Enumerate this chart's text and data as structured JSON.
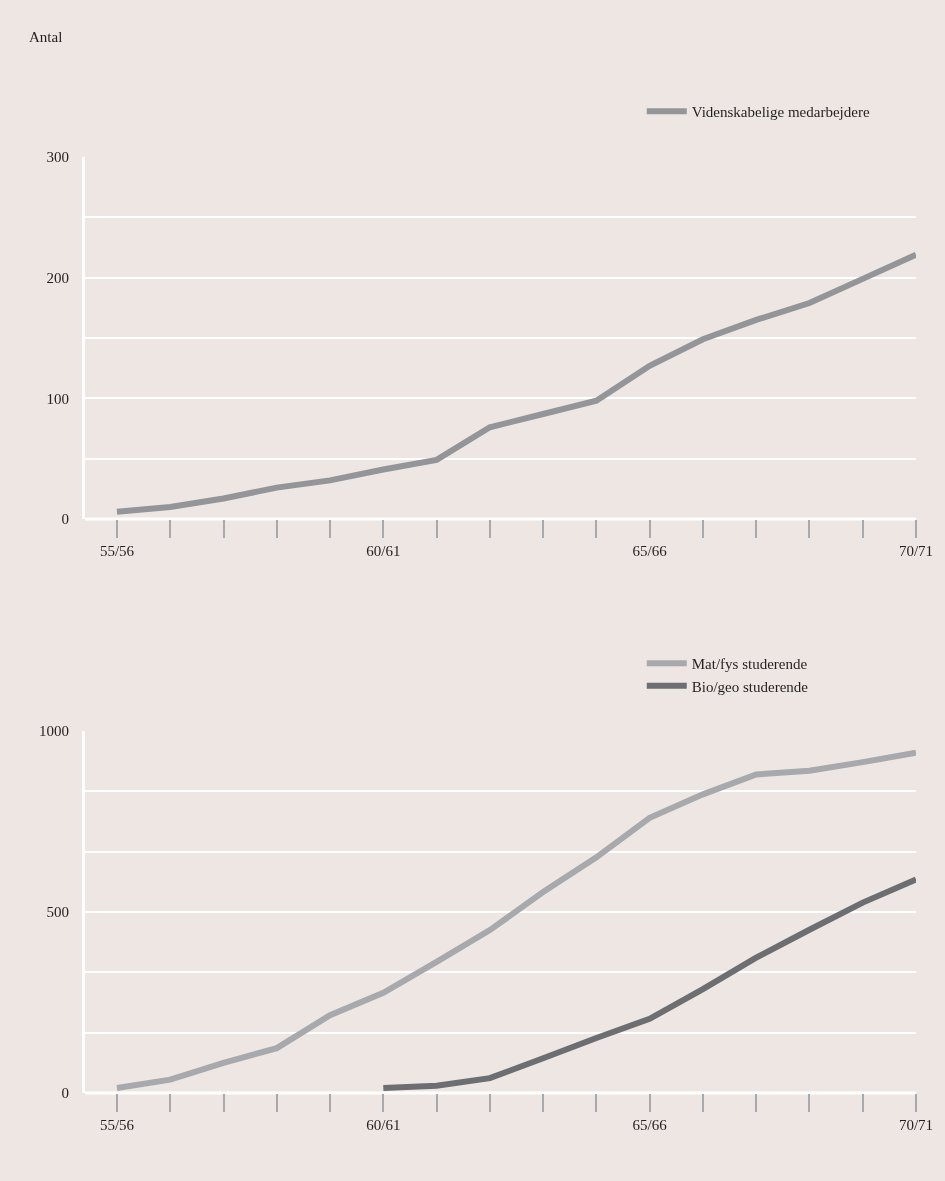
{
  "chart_data": [
    {
      "type": "line",
      "ylabel": "Antal",
      "categories": [
        "55/56",
        null,
        null,
        null,
        null,
        "60/61",
        null,
        null,
        null,
        null,
        "65/66",
        null,
        null,
        null,
        null,
        "70/71"
      ],
      "series": [
        {
          "name": "Videnskabelige medarbejdere",
          "color": "#939598",
          "values": [
            6,
            10,
            17,
            26,
            32,
            41,
            49,
            76,
            87,
            98,
            127,
            149,
            165,
            179,
            199,
            219
          ]
        }
      ],
      "ylim": [
        0,
        300
      ],
      "yticks": [
        0,
        {
          "value": 50,
          "label": null
        },
        100,
        {
          "value": 150,
          "label": null
        },
        200,
        {
          "value": 250,
          "label": null
        },
        300
      ],
      "grid": "y",
      "legend": "top right",
      "line_style": "solid"
    },
    {
      "type": "line",
      "categories": [
        "55/56",
        null,
        null,
        null,
        null,
        "60/61",
        null,
        null,
        null,
        null,
        "65/66",
        null,
        null,
        null,
        null,
        "70/71"
      ],
      "series": [
        {
          "name": "Mat/fys studerende",
          "color": "#a7a9ac",
          "values": [
            14,
            37,
            83,
            124,
            215,
            277,
            362,
            450,
            555,
            651,
            760,
            825,
            880,
            890,
            914,
            940
          ]
        },
        {
          "name": "Bio/geo studerende",
          "color": "#6d6e71",
          "values": [
            null,
            null,
            null,
            null,
            null,
            14,
            20,
            41,
            96,
            152,
            205,
            287,
            374,
            451,
            526,
            590
          ]
        }
      ],
      "ylim": [
        0,
        1000
      ],
      "yticks": [
        0,
        {
          "value": 166.7,
          "label": null
        },
        {
          "value": 333.3,
          "label": null
        },
        500,
        {
          "value": 666.7,
          "label": null
        },
        {
          "value": 833.3,
          "label": null
        },
        1000
      ],
      "grid": "y",
      "legend": "top right",
      "line_style": "solid"
    }
  ]
}
